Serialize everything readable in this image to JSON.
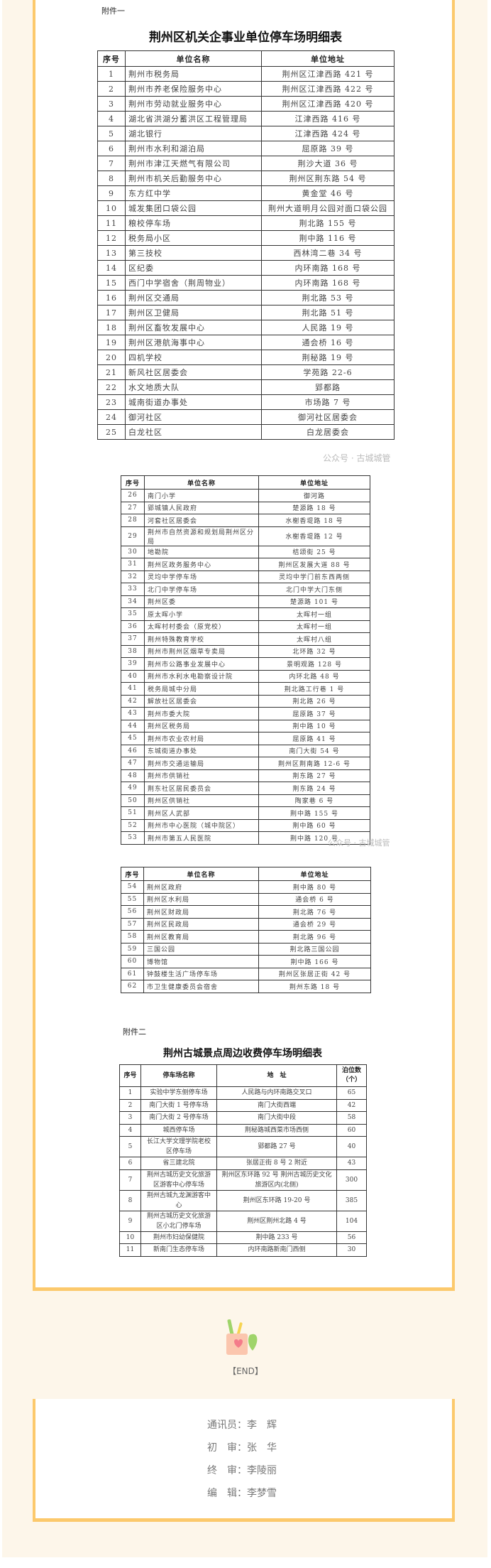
{
  "colors": {
    "accent": "#fcc96c",
    "background": "#fdf6ea"
  },
  "attachment1": {
    "label": "附件一",
    "title": "荆州区机关企事业单位停车场明细表",
    "headers": [
      "序号",
      "单位名称",
      "单位地址"
    ],
    "rows": [
      [
        "1",
        "荆州市税务局",
        "荆州区江津西路 421 号"
      ],
      [
        "2",
        "荆州市养老保险服务中心",
        "荆州区江津西路 422 号"
      ],
      [
        "3",
        "荆州市劳动就业服务中心",
        "荆州区江津西路 420 号"
      ],
      [
        "4",
        "湖北省洪湖分蓄洪区工程管理局",
        "江津西路 416 号"
      ],
      [
        "5",
        "湖北银行",
        "江津西路 424 号"
      ],
      [
        "6",
        "荆州市水利和湖泊局",
        "屈原路 39 号"
      ],
      [
        "7",
        "荆州市津江天燃气有限公司",
        "荆沙大道 36 号"
      ],
      [
        "8",
        "荆州市机关后勤服务中心",
        "荆州区荆东路 54 号"
      ],
      [
        "9",
        "东方红中学",
        "黄金堂 46 号"
      ],
      [
        "10",
        "城发集团口袋公园",
        "荆州大道明月公园对面口袋公园"
      ],
      [
        "11",
        "粮校停车场",
        "荆北路 155 号"
      ],
      [
        "12",
        "税务局小区",
        "荆中路 116 号"
      ],
      [
        "13",
        "第三技校",
        "西林湾二巷 34 号"
      ],
      [
        "14",
        "区纪委",
        "内环南路 168 号"
      ],
      [
        "15",
        "西门中学宿舍（荆周物业）",
        "内环南路 168 号"
      ],
      [
        "16",
        "荆州区交通局",
        "荆北路 53 号"
      ],
      [
        "17",
        "荆州区卫健局",
        "荆北路 51 号"
      ],
      [
        "18",
        "荆州区畜牧发展中心",
        "人民路 19 号"
      ],
      [
        "19",
        "荆州区港航海事中心",
        "通会桥 16 号"
      ],
      [
        "20",
        "四机学校",
        "荆秘路 19 号"
      ],
      [
        "21",
        "新风社区居委会",
        "学苑路 22-6"
      ],
      [
        "22",
        "水文地质大队",
        "郢都路"
      ],
      [
        "23",
        "城南街道办事处",
        "市场路 7 号"
      ],
      [
        "24",
        "御河社区",
        "御河社区居委会"
      ],
      [
        "25",
        "白龙社区",
        "白龙居委会"
      ]
    ],
    "rows_b": [
      [
        "26",
        "南门小学",
        "御河路"
      ],
      [
        "27",
        "郢城镇人民政府",
        "楚源路 18 号"
      ],
      [
        "28",
        "河套社区居委会",
        "水榭香堤路 18 号"
      ],
      [
        "29",
        "荆州市自然资源和规划局荆州区分局",
        "水榭香堤路 12 号"
      ],
      [
        "30",
        "地勘院",
        "桔颂街 25 号"
      ],
      [
        "31",
        "荆州区政务服务中心",
        "荆州区发展大道 88 号"
      ],
      [
        "32",
        "灵均中学停车场",
        "灵均中学门前东西两侧"
      ],
      [
        "33",
        "北门中学停车场",
        "北门中学大门东侧"
      ],
      [
        "34",
        "荆州区委",
        "楚源路 101 号"
      ],
      [
        "35",
        "原太晖小学",
        "太晖村一组"
      ],
      [
        "36",
        "太晖村村委会（原党校）",
        "太晖村一组"
      ],
      [
        "37",
        "荆州特殊教育学校",
        "太晖村八组"
      ],
      [
        "38",
        "荆州市荆州区烟草专卖局",
        "北环路 32 号"
      ],
      [
        "39",
        "荆州市公路事业发展中心",
        "景明观路 128 号"
      ],
      [
        "40",
        "荆州市水利水电勘察设计院",
        "内环北路 48 号"
      ],
      [
        "41",
        "税务局城中分局",
        "荆北路工行巷 1 号"
      ],
      [
        "42",
        "解放社区居委会",
        "荆北路 26 号"
      ],
      [
        "43",
        "荆州市委大院",
        "屈原路 37 号"
      ],
      [
        "44",
        "荆州区税务局",
        "荆中路 10 号"
      ],
      [
        "45",
        "荆州市农业农村局",
        "屈原路 41 号"
      ],
      [
        "46",
        "东城街道办事处",
        "南门大街 54 号"
      ],
      [
        "47",
        "荆州市交通运输局",
        "荆州区荆南路 12-6 号"
      ],
      [
        "48",
        "荆州市供销社",
        "荆东路 27 号"
      ],
      [
        "49",
        "荆东社区居民委员会",
        "荆东路 24 号"
      ],
      [
        "50",
        "荆州区供销社",
        "陶家巷 6 号"
      ],
      [
        "51",
        "荆州区人武部",
        "荆中路 155 号"
      ],
      [
        "52",
        "荆州市中心医院（城中院区）",
        "荆中路 60 号"
      ],
      [
        "53",
        "荆州市第五人民医院",
        "荆中路 120 号"
      ]
    ],
    "rows_c": [
      [
        "54",
        "荆州区政府",
        "荆中路 80 号"
      ],
      [
        "55",
        "荆州区水利局",
        "通会桥 6 号"
      ],
      [
        "56",
        "荆州区财政局",
        "荆北路 76 号"
      ],
      [
        "57",
        "荆州区民政局",
        "通会桥 29 号"
      ],
      [
        "58",
        "荆州区教育局",
        "荆北路 96 号"
      ],
      [
        "59",
        "三国公园",
        "荆北路三国公园"
      ],
      [
        "60",
        "博物馆",
        "荆中路 166 号"
      ],
      [
        "61",
        "钟鼓楼生活广场停车场",
        "荆州区张居正街 42 号"
      ],
      [
        "62",
        "市卫生健康委员会宿舍",
        "荆州东路 18 号"
      ]
    ]
  },
  "attachment2": {
    "label": "附件二",
    "title": "荆州古城景点周边收费停车场明细表",
    "headers": [
      "序号",
      "停车场名称",
      "地　址",
      "泊位数（个）"
    ],
    "rows": [
      [
        "1",
        "实验中学东侧停车场",
        "人民路与内环南路交叉口",
        "65"
      ],
      [
        "2",
        "南门大街 1 号停车场",
        "南门大街西端",
        "42"
      ],
      [
        "3",
        "南门大街 2 号停车场",
        "南门大街中段",
        "58"
      ],
      [
        "4",
        "城西停车场",
        "荆秘路城西菜市场西侧",
        "60"
      ],
      [
        "5",
        "长江大学文理学院老校区停车场",
        "郢都路 27 号",
        "40"
      ],
      [
        "6",
        "省三建北院",
        "张居正街 8 号 2 附近",
        "43"
      ],
      [
        "7",
        "荆州古城历史文化旅游区游客中心停车场",
        "荆州区东环路 92 号 荆州古城历史文化旅游区内(北侧)",
        "300"
      ],
      [
        "8",
        "荆州古城九龙渊游客中心",
        "荆州区东环路 19-20 号",
        "385"
      ],
      [
        "9",
        "荆州古城历史文化旅游区小北门停车场",
        "荆州区荆州北路 4 号",
        "104"
      ],
      [
        "10",
        "荆州市妇幼保健院",
        "荆中路 233 号",
        "56"
      ],
      [
        "11",
        "新南门生态停车场",
        "内环南路新南门西侧",
        "30"
      ]
    ]
  },
  "watermark": "公众号 · 古城城管",
  "end_icon": "pencil-cup-icon",
  "end_text": "【END】",
  "credits": [
    "通讯员：李　辉",
    "初　审：张　华",
    "终　审：李陵丽",
    "编　辑：李梦雪"
  ]
}
